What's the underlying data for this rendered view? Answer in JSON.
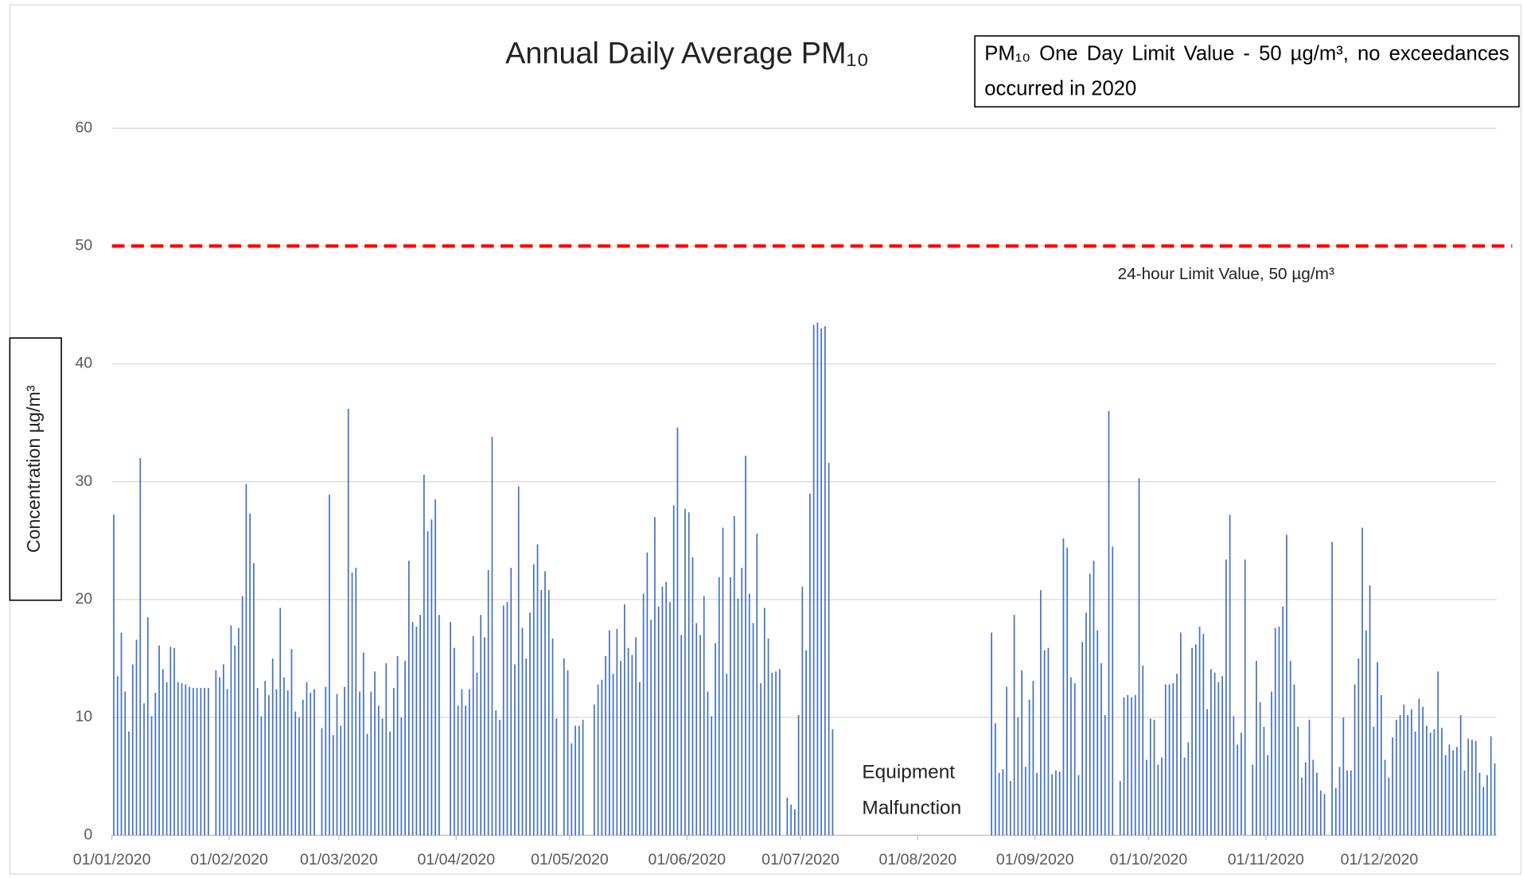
{
  "chart_data": {
    "type": "bar",
    "title": "Annual Daily Average PM₁₀",
    "annotation": "PM₁₀ One Day Limit Value - 50 µg/m³, no exceedances occurred in 2020",
    "limit_label": "24-hour Limit Value, 50 µg/m³",
    "gap_label": [
      "Equipment",
      "Malfunction"
    ],
    "ylabel": "Concentration µg/m³",
    "color": "#4472c4",
    "limit_line": {
      "value": 50,
      "color": "#ff0000",
      "dashed": true
    },
    "ylim": [
      0,
      60
    ],
    "yticks": [
      0,
      10,
      20,
      30,
      40,
      50,
      60
    ],
    "grid": true,
    "xticks": [
      "01/01/2020",
      "01/02/2020",
      "01/03/2020",
      "01/04/2020",
      "01/05/2020",
      "01/06/2020",
      "01/07/2020",
      "01/08/2020",
      "01/09/2020",
      "01/10/2020",
      "01/11/2020",
      "01/12/2020"
    ],
    "x": [
      "01/01/2020",
      "02/01/2020",
      "03/01/2020",
      "04/01/2020",
      "05/01/2020",
      "06/01/2020",
      "07/01/2020",
      "08/01/2020",
      "09/01/2020",
      "10/01/2020",
      "11/01/2020",
      "12/01/2020",
      "13/01/2020",
      "14/01/2020",
      "15/01/2020",
      "16/01/2020",
      "17/01/2020",
      "18/01/2020",
      "19/01/2020",
      "20/01/2020",
      "21/01/2020",
      "22/01/2020",
      "23/01/2020",
      "24/01/2020",
      "25/01/2020",
      "26/01/2020",
      "27/01/2020",
      "28/01/2020",
      "29/01/2020",
      "30/01/2020",
      "31/01/2020",
      "01/02/2020",
      "02/02/2020",
      "03/02/2020",
      "04/02/2020",
      "05/02/2020",
      "06/02/2020",
      "07/02/2020",
      "08/02/2020",
      "09/02/2020",
      "10/02/2020",
      "11/02/2020",
      "12/02/2020",
      "13/02/2020",
      "14/02/2020",
      "15/02/2020",
      "16/02/2020",
      "17/02/2020",
      "18/02/2020",
      "19/02/2020",
      "20/02/2020",
      "21/02/2020",
      "22/02/2020",
      "23/02/2020",
      "24/02/2020",
      "25/02/2020",
      "26/02/2020",
      "27/02/2020",
      "28/02/2020",
      "29/02/2020",
      "01/03/2020",
      "02/03/2020",
      "03/03/2020",
      "04/03/2020",
      "05/03/2020",
      "06/03/2020",
      "07/03/2020",
      "08/03/2020",
      "09/03/2020",
      "10/03/2020",
      "11/03/2020",
      "12/03/2020",
      "13/03/2020",
      "14/03/2020",
      "15/03/2020",
      "16/03/2020",
      "17/03/2020",
      "18/03/2020",
      "19/03/2020",
      "20/03/2020",
      "21/03/2020",
      "22/03/2020",
      "23/03/2020",
      "24/03/2020",
      "25/03/2020",
      "26/03/2020",
      "27/03/2020",
      "28/03/2020",
      "29/03/2020",
      "30/03/2020",
      "31/03/2020",
      "01/04/2020",
      "02/04/2020",
      "03/04/2020",
      "04/04/2020",
      "05/04/2020",
      "06/04/2020",
      "07/04/2020",
      "08/04/2020",
      "09/04/2020",
      "10/04/2020",
      "11/04/2020",
      "12/04/2020",
      "13/04/2020",
      "14/04/2020",
      "15/04/2020",
      "16/04/2020",
      "17/04/2020",
      "18/04/2020",
      "19/04/2020",
      "20/04/2020",
      "21/04/2020",
      "22/04/2020",
      "23/04/2020",
      "24/04/2020",
      "25/04/2020",
      "26/04/2020",
      "27/04/2020",
      "28/04/2020",
      "29/04/2020",
      "30/04/2020",
      "01/05/2020",
      "02/05/2020",
      "03/05/2020",
      "04/05/2020",
      "05/05/2020",
      "06/05/2020",
      "07/05/2020",
      "08/05/2020",
      "09/05/2020",
      "10/05/2020",
      "11/05/2020",
      "12/05/2020",
      "13/05/2020",
      "14/05/2020",
      "15/05/2020",
      "16/05/2020",
      "17/05/2020",
      "18/05/2020",
      "19/05/2020",
      "20/05/2020",
      "21/05/2020",
      "22/05/2020",
      "23/05/2020",
      "24/05/2020",
      "25/05/2020",
      "26/05/2020",
      "27/05/2020",
      "28/05/2020",
      "29/05/2020",
      "30/05/2020",
      "31/05/2020",
      "01/06/2020",
      "02/06/2020",
      "03/06/2020",
      "04/06/2020",
      "05/06/2020",
      "06/06/2020",
      "07/06/2020",
      "08/06/2020",
      "09/06/2020",
      "10/06/2020",
      "11/06/2020",
      "12/06/2020",
      "13/06/2020",
      "14/06/2020",
      "15/06/2020",
      "16/06/2020",
      "17/06/2020",
      "18/06/2020",
      "19/06/2020",
      "20/06/2020",
      "21/06/2020",
      "22/06/2020",
      "23/06/2020",
      "24/06/2020",
      "25/06/2020",
      "26/06/2020",
      "27/06/2020",
      "28/06/2020",
      "29/06/2020",
      "30/06/2020",
      "01/07/2020",
      "02/07/2020",
      "03/07/2020",
      "04/07/2020",
      "05/07/2020",
      "06/07/2020",
      "07/07/2020",
      "08/07/2020",
      "09/07/2020",
      "10/07/2020",
      "11/07/2020",
      "12/07/2020",
      "13/07/2020",
      "14/07/2020",
      "15/07/2020",
      "16/07/2020",
      "17/07/2020",
      "18/07/2020",
      "19/07/2020",
      "20/07/2020",
      "21/07/2020",
      "22/07/2020",
      "23/07/2020",
      "24/07/2020",
      "25/07/2020",
      "26/07/2020",
      "27/07/2020",
      "28/07/2020",
      "29/07/2020",
      "30/07/2020",
      "31/07/2020",
      "01/08/2020",
      "02/08/2020",
      "03/08/2020",
      "04/08/2020",
      "05/08/2020",
      "06/08/2020",
      "07/08/2020",
      "08/08/2020",
      "09/08/2020",
      "10/08/2020",
      "11/08/2020",
      "12/08/2020",
      "13/08/2020",
      "14/08/2020",
      "15/08/2020",
      "16/08/2020",
      "17/08/2020",
      "18/08/2020",
      "19/08/2020",
      "20/08/2020",
      "21/08/2020",
      "22/08/2020",
      "23/08/2020",
      "24/08/2020",
      "25/08/2020",
      "26/08/2020",
      "27/08/2020",
      "28/08/2020",
      "29/08/2020",
      "30/08/2020",
      "31/08/2020",
      "01/09/2020",
      "02/09/2020",
      "03/09/2020",
      "04/09/2020",
      "05/09/2020",
      "06/09/2020",
      "07/09/2020",
      "08/09/2020",
      "09/09/2020",
      "10/09/2020",
      "11/09/2020",
      "12/09/2020",
      "13/09/2020",
      "14/09/2020",
      "15/09/2020",
      "16/09/2020",
      "17/09/2020",
      "18/09/2020",
      "19/09/2020",
      "20/09/2020",
      "21/09/2020",
      "22/09/2020",
      "23/09/2020",
      "24/09/2020",
      "25/09/2020",
      "26/09/2020",
      "27/09/2020",
      "28/09/2020",
      "29/09/2020",
      "30/09/2020",
      "01/10/2020",
      "02/10/2020",
      "03/10/2020",
      "04/10/2020",
      "05/10/2020",
      "06/10/2020",
      "07/10/2020",
      "08/10/2020",
      "09/10/2020",
      "10/10/2020",
      "11/10/2020",
      "12/10/2020",
      "13/10/2020",
      "14/10/2020",
      "15/10/2020",
      "16/10/2020",
      "17/10/2020",
      "18/10/2020",
      "19/10/2020",
      "20/10/2020",
      "21/10/2020",
      "22/10/2020",
      "23/10/2020",
      "24/10/2020",
      "25/10/2020",
      "26/10/2020",
      "27/10/2020",
      "28/10/2020",
      "29/10/2020",
      "30/10/2020",
      "31/10/2020",
      "01/11/2020",
      "02/11/2020",
      "03/11/2020",
      "04/11/2020",
      "05/11/2020",
      "06/11/2020",
      "07/11/2020",
      "08/11/2020",
      "09/11/2020",
      "10/11/2020",
      "11/11/2020",
      "12/11/2020",
      "13/11/2020",
      "14/11/2020",
      "15/11/2020",
      "16/11/2020",
      "17/11/2020",
      "18/11/2020",
      "19/11/2020",
      "20/11/2020",
      "21/11/2020",
      "22/11/2020",
      "23/11/2020",
      "24/11/2020",
      "25/11/2020",
      "26/11/2020",
      "27/11/2020",
      "28/11/2020",
      "29/11/2020",
      "30/11/2020",
      "01/12/2020",
      "02/12/2020",
      "03/12/2020",
      "04/12/2020",
      "05/12/2020",
      "06/12/2020",
      "07/12/2020",
      "08/12/2020",
      "09/12/2020",
      "10/12/2020",
      "11/12/2020",
      "12/12/2020",
      "13/12/2020",
      "14/12/2020",
      "15/12/2020",
      "16/12/2020",
      "17/12/2020",
      "18/12/2020",
      "19/12/2020",
      "20/12/2020",
      "21/12/2020",
      "22/12/2020",
      "23/12/2020",
      "24/12/2020",
      "25/12/2020",
      "26/12/2020",
      "27/12/2020",
      "28/12/2020",
      "29/12/2020",
      "30/12/2020",
      "31/12/2020"
    ],
    "values": [
      27.2,
      13.5,
      17.2,
      12.2,
      8.8,
      14.5,
      16.6,
      32.0,
      11.2,
      18.5,
      10.1,
      12.1,
      16.1,
      14.1,
      13.0,
      16.0,
      15.9,
      13.0,
      12.9,
      12.8,
      12.6,
      12.5,
      12.5,
      12.5,
      12.5,
      12.5,
      null,
      14.0,
      13.4,
      14.5,
      12.4,
      17.8,
      16.1,
      17.6,
      20.3,
      29.8,
      27.3,
      23.1,
      12.5,
      10.1,
      13.1,
      11.9,
      15.0,
      12.4,
      19.3,
      13.4,
      12.3,
      15.8,
      10.5,
      10.0,
      11.5,
      13.0,
      12.1,
      12.4,
      null,
      9.1,
      12.6,
      28.9,
      8.5,
      12.0,
      9.3,
      12.6,
      36.2,
      22.3,
      22.7,
      12.2,
      15.5,
      8.6,
      12.2,
      13.9,
      11.0,
      9.9,
      14.6,
      8.8,
      12.5,
      15.2,
      10.0,
      14.8,
      23.3,
      18.1,
      17.7,
      18.7,
      30.6,
      25.8,
      26.8,
      28.5,
      18.7,
      null,
      null,
      18.1,
      15.9,
      11.0,
      12.4,
      11.0,
      12.4,
      16.9,
      13.8,
      18.7,
      16.8,
      22.5,
      33.8,
      10.6,
      9.8,
      19.5,
      19.8,
      22.7,
      14.5,
      29.6,
      17.6,
      15.0,
      18.9,
      23.0,
      24.7,
      20.8,
      22.4,
      20.8,
      16.7,
      9.9,
      null,
      15.0,
      14.0,
      7.8,
      9.3,
      9.3,
      9.8,
      null,
      null,
      11.1,
      12.8,
      13.2,
      15.2,
      17.4,
      13.7,
      17.5,
      14.8,
      19.6,
      15.9,
      15.3,
      16.8,
      13.0,
      20.5,
      24.0,
      18.3,
      27.0,
      19.4,
      21.1,
      21.5,
      19.8,
      28.0,
      34.6,
      17.0,
      27.7,
      27.4,
      23.6,
      18.0,
      17.0,
      20.3,
      12.2,
      10.1,
      16.3,
      21.9,
      26.1,
      13.7,
      21.9,
      27.1,
      20.1,
      22.7,
      32.2,
      20.5,
      18.0,
      25.6,
      12.9,
      19.3,
      16.7,
      13.8,
      13.9,
      14.1,
      null,
      3.2,
      2.6,
      2.2,
      10.2,
      21.1,
      15.7,
      29.0,
      43.3,
      43.5,
      43.0,
      43.2,
      31.6,
      9.0,
      null,
      null,
      null,
      null,
      null,
      null,
      null,
      null,
      null,
      null,
      null,
      null,
      null,
      null,
      null,
      null,
      null,
      null,
      null,
      null,
      null,
      null,
      null,
      null,
      null,
      null,
      null,
      null,
      null,
      null,
      null,
      null,
      null,
      null,
      null,
      null,
      null,
      null,
      null,
      null,
      null,
      17.2,
      9.5,
      5.3,
      5.6,
      12.6,
      4.6,
      18.7,
      10.0,
      14.0,
      5.8,
      11.5,
      13.1,
      5.3,
      20.8,
      15.7,
      15.9,
      5.2,
      5.5,
      5.4,
      25.2,
      24.4,
      13.4,
      12.9,
      5.1,
      16.4,
      18.9,
      22.2,
      23.3,
      17.4,
      14.6,
      10.2,
      36.0,
      24.5,
      null,
      4.6,
      11.7,
      11.9,
      11.7,
      11.9,
      30.3,
      14.4,
      6.4,
      9.9,
      9.8,
      6.0,
      6.6,
      12.8,
      12.8,
      12.9,
      13.7,
      17.2,
      6.6,
      7.9,
      15.9,
      16.2,
      17.7,
      17.1,
      10.7,
      14.1,
      13.8,
      13.0,
      13.5,
      23.4,
      27.2,
      10.1,
      7.7,
      8.7,
      23.4,
      null,
      6.0,
      14.8,
      11.3,
      9.2,
      6.8,
      12.2,
      17.6,
      17.7,
      19.4,
      25.5,
      14.8,
      12.8,
      9.2,
      4.9,
      6.2,
      9.8,
      6.4,
      5.3,
      3.8,
      3.5,
      null,
      24.9,
      4.0,
      5.8,
      10.0,
      5.5,
      5.5,
      12.8,
      15.0,
      26.1,
      17.4,
      21.2,
      9.2,
      14.7,
      11.9,
      6.4,
      4.9,
      8.3,
      9.8,
      10.2,
      11.1,
      10.2,
      10.7,
      8.8,
      11.6,
      10.9,
      9.3,
      8.7,
      9.0,
      13.9,
      9.1,
      6.8,
      7.7,
      7.2,
      7.5,
      10.2,
      5.5,
      8.2,
      8.1,
      8.0,
      5.3,
      4.1,
      5.1,
      8.4,
      6.1
    ]
  }
}
